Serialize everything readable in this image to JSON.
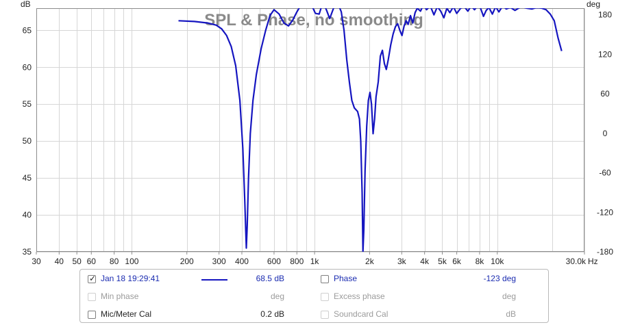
{
  "chart_data": {
    "type": "line",
    "title": "SPL & Phase, no smoothing",
    "ylabel_left": "dB",
    "ylabel_right": "deg",
    "xlabel_unit": "Hz",
    "x_scale": "log",
    "xlim": [
      30,
      30000
    ],
    "ylim": [
      35,
      68
    ],
    "y2lim": [
      -180,
      190
    ],
    "x_tick_labels": [
      {
        "value": 30,
        "label": "30"
      },
      {
        "value": 40,
        "label": "40"
      },
      {
        "value": 50,
        "label": "50"
      },
      {
        "value": 60,
        "label": "60"
      },
      {
        "value": 80,
        "label": "80"
      },
      {
        "value": 100,
        "label": "100"
      },
      {
        "value": 200,
        "label": "200"
      },
      {
        "value": 300,
        "label": "300"
      },
      {
        "value": 400,
        "label": "400"
      },
      {
        "value": 600,
        "label": "600"
      },
      {
        "value": 800,
        "label": "800"
      },
      {
        "value": 1000,
        "label": "1k"
      },
      {
        "value": 2000,
        "label": "2k"
      },
      {
        "value": 3000,
        "label": "3k"
      },
      {
        "value": 4000,
        "label": "4k"
      },
      {
        "value": 5000,
        "label": "5k"
      },
      {
        "value": 6000,
        "label": "6k"
      },
      {
        "value": 8000,
        "label": "8k"
      },
      {
        "value": 10000,
        "label": "10k"
      },
      {
        "value": 30000,
        "label": "30.0k"
      }
    ],
    "y_ticks": [
      35,
      40,
      45,
      50,
      55,
      60,
      65
    ],
    "y2_ticks": [
      -180,
      -120,
      -60,
      0,
      60,
      120,
      180
    ],
    "grid": true,
    "series": [
      {
        "color": "#1515c0",
        "points": [
          [
            180,
            66.3
          ],
          [
            220,
            66.2
          ],
          [
            260,
            66.0
          ],
          [
            290,
            65.7
          ],
          [
            310,
            65.2
          ],
          [
            330,
            64.3
          ],
          [
            350,
            62.8
          ],
          [
            370,
            60.2
          ],
          [
            390,
            55.5
          ],
          [
            405,
            49.0
          ],
          [
            415,
            42.0
          ],
          [
            420,
            38.0
          ],
          [
            423,
            35.5
          ],
          [
            428,
            38.5
          ],
          [
            435,
            45.0
          ],
          [
            445,
            51.0
          ],
          [
            460,
            55.5
          ],
          [
            480,
            59.0
          ],
          [
            510,
            62.5
          ],
          [
            540,
            65.0
          ],
          [
            570,
            67.0
          ],
          [
            600,
            67.8
          ],
          [
            640,
            67.2
          ],
          [
            680,
            66.0
          ],
          [
            720,
            65.6
          ],
          [
            760,
            66.4
          ],
          [
            800,
            67.5
          ],
          [
            850,
            68.6
          ],
          [
            900,
            69.5
          ],
          [
            960,
            68.5
          ],
          [
            1010,
            67.3
          ],
          [
            1060,
            67.2
          ],
          [
            1110,
            68.8
          ],
          [
            1160,
            67.8
          ],
          [
            1210,
            66.6
          ],
          [
            1270,
            68.0
          ],
          [
            1330,
            68.9
          ],
          [
            1400,
            67.5
          ],
          [
            1450,
            65.0
          ],
          [
            1500,
            61.0
          ],
          [
            1550,
            58.0
          ],
          [
            1600,
            55.5
          ],
          [
            1650,
            54.5
          ],
          [
            1720,
            54.0
          ],
          [
            1760,
            53.0
          ],
          [
            1790,
            50.0
          ],
          [
            1820,
            43.0
          ],
          [
            1840,
            35.0
          ],
          [
            1860,
            38.0
          ],
          [
            1890,
            46.0
          ],
          [
            1930,
            52.0
          ],
          [
            1970,
            55.5
          ],
          [
            2010,
            56.6
          ],
          [
            2050,
            55.0
          ],
          [
            2090,
            51.0
          ],
          [
            2130,
            53.0
          ],
          [
            2170,
            56.0
          ],
          [
            2230,
            58.0
          ],
          [
            2290,
            61.5
          ],
          [
            2350,
            62.3
          ],
          [
            2410,
            60.5
          ],
          [
            2470,
            59.7
          ],
          [
            2530,
            61.0
          ],
          [
            2610,
            63.0
          ],
          [
            2690,
            64.5
          ],
          [
            2770,
            65.5
          ],
          [
            2850,
            65.9
          ],
          [
            2930,
            65.0
          ],
          [
            3010,
            64.3
          ],
          [
            3090,
            65.6
          ],
          [
            3170,
            66.3
          ],
          [
            3250,
            65.8
          ],
          [
            3350,
            67.0
          ],
          [
            3450,
            66.0
          ],
          [
            3550,
            67.4
          ],
          [
            3650,
            68.0
          ],
          [
            3800,
            67.6
          ],
          [
            3950,
            68.5
          ],
          [
            4100,
            67.8
          ],
          [
            4300,
            68.3
          ],
          [
            4500,
            67.1
          ],
          [
            4700,
            68.2
          ],
          [
            4900,
            67.6
          ],
          [
            5100,
            66.7
          ],
          [
            5300,
            68.0
          ],
          [
            5500,
            67.4
          ],
          [
            5750,
            68.2
          ],
          [
            6000,
            67.3
          ],
          [
            6300,
            68.0
          ],
          [
            6600,
            68.2
          ],
          [
            6900,
            67.6
          ],
          [
            7200,
            68.3
          ],
          [
            7500,
            67.8
          ],
          [
            7800,
            68.3
          ],
          [
            8100,
            68.0
          ],
          [
            8400,
            66.9
          ],
          [
            8700,
            67.7
          ],
          [
            9000,
            68.1
          ],
          [
            9400,
            67.2
          ],
          [
            9800,
            68.2
          ],
          [
            10200,
            67.5
          ],
          [
            10700,
            68.3
          ],
          [
            11200,
            67.9
          ],
          [
            11800,
            68.1
          ],
          [
            12500,
            67.7
          ],
          [
            13500,
            68.2
          ],
          [
            14500,
            68.0
          ],
          [
            15500,
            67.9
          ],
          [
            16500,
            68.1
          ],
          [
            17500,
            68.0
          ],
          [
            18500,
            67.8
          ],
          [
            19500,
            67.2
          ],
          [
            20500,
            66.3
          ],
          [
            21500,
            64.0
          ],
          [
            22500,
            62.2
          ]
        ]
      }
    ]
  },
  "legend": {
    "rows": [
      {
        "left": {
          "checked": true,
          "label": "Jan 18 19:29:41",
          "value": "68.5 dB",
          "swatch": true
        },
        "right": {
          "checked": false,
          "label": "Phase",
          "value": "-123 deg"
        }
      },
      {
        "left": {
          "checked": false,
          "label": "Min phase",
          "value": "deg"
        },
        "right": {
          "checked": false,
          "label": "Excess phase",
          "value": "deg"
        }
      },
      {
        "left": {
          "checked": false,
          "label": "Mic/Meter Cal",
          "value": "0.2 dB"
        },
        "right": {
          "checked": false,
          "label": "Soundcard Cal",
          "value": "dB"
        }
      }
    ]
  }
}
